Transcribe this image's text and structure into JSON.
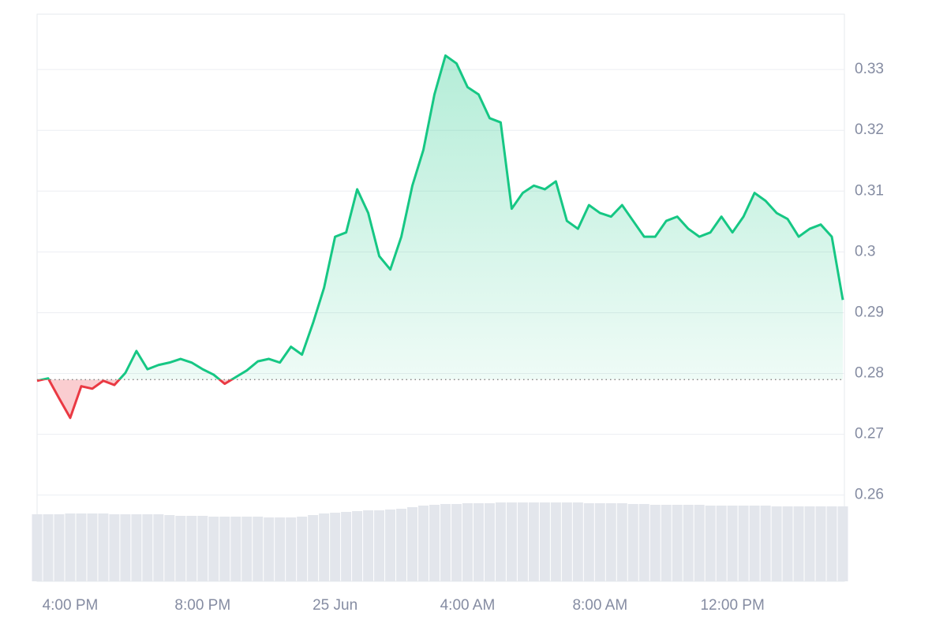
{
  "chart_data": {
    "type": "line",
    "categories": [
      null,
      null,
      null,
      "4:00 PM",
      null,
      null,
      null,
      null,
      null,
      null,
      null,
      null,
      null,
      null,
      null,
      "8:00 PM",
      null,
      null,
      null,
      null,
      null,
      null,
      null,
      null,
      null,
      null,
      null,
      "25 Jun",
      null,
      null,
      null,
      null,
      null,
      null,
      null,
      null,
      null,
      null,
      null,
      "4:00 AM",
      null,
      null,
      null,
      null,
      null,
      null,
      null,
      null,
      null,
      null,
      null,
      "8:00 AM",
      null,
      null,
      null,
      null,
      null,
      null,
      null,
      null,
      null,
      null,
      null,
      "12:00 PM",
      null,
      null,
      null,
      null,
      null,
      null,
      null,
      null,
      null,
      null
    ],
    "values": [
      0.2788,
      0.2792,
      0.2759,
      0.2727,
      0.2779,
      0.2775,
      0.2788,
      0.2781,
      0.2801,
      0.2837,
      0.2807,
      0.2814,
      0.2818,
      0.2824,
      0.2818,
      0.2807,
      0.2798,
      0.2783,
      0.2794,
      0.2805,
      0.282,
      0.2824,
      0.2818,
      0.2844,
      0.2831,
      0.2883,
      0.2941,
      0.3025,
      0.3032,
      0.3103,
      0.3064,
      0.2993,
      0.2971,
      0.3025,
      0.3109,
      0.3168,
      0.3259,
      0.3323,
      0.331,
      0.3271,
      0.3259,
      0.322,
      0.3213,
      0.3071,
      0.3097,
      0.3109,
      0.3103,
      0.3116,
      0.3051,
      0.3038,
      0.3077,
      0.3064,
      0.3058,
      0.3077,
      0.3051,
      0.3025,
      0.3025,
      0.3051,
      0.3058,
      0.3038,
      0.3025,
      0.3032,
      0.3058,
      0.3032,
      0.3058,
      0.3097,
      0.3084,
      0.3064,
      0.3054,
      0.3025,
      0.3038,
      0.3045,
      0.3025,
      0.2921
    ],
    "volume": [
      85,
      85,
      85,
      86,
      86,
      86,
      86,
      85,
      85,
      85,
      85,
      85,
      84,
      83,
      83,
      83,
      82,
      82,
      82,
      82,
      82,
      81,
      81,
      81,
      82,
      84,
      86,
      87,
      88,
      89,
      90,
      90,
      91,
      92,
      94,
      96,
      97,
      98,
      98,
      99,
      99,
      99,
      100,
      100,
      100,
      100,
      100,
      100,
      100,
      100,
      99,
      99,
      99,
      99,
      98,
      98,
      97,
      97,
      97,
      97,
      97,
      96,
      96,
      96,
      96,
      96,
      96,
      95,
      95,
      95,
      95,
      95,
      95,
      95
    ],
    "volume_lim": [
      0,
      100
    ],
    "color": "#16c784",
    "down_color": "#ea3943",
    "volume_color": "#e3e6ec",
    "baseline": 0.279,
    "ylim": [
      0.2584,
      0.3391
    ],
    "yticks": [
      0.26,
      0.27,
      0.28,
      0.29,
      0.3,
      0.31,
      0.32,
      0.33
    ],
    "grid": true
  }
}
